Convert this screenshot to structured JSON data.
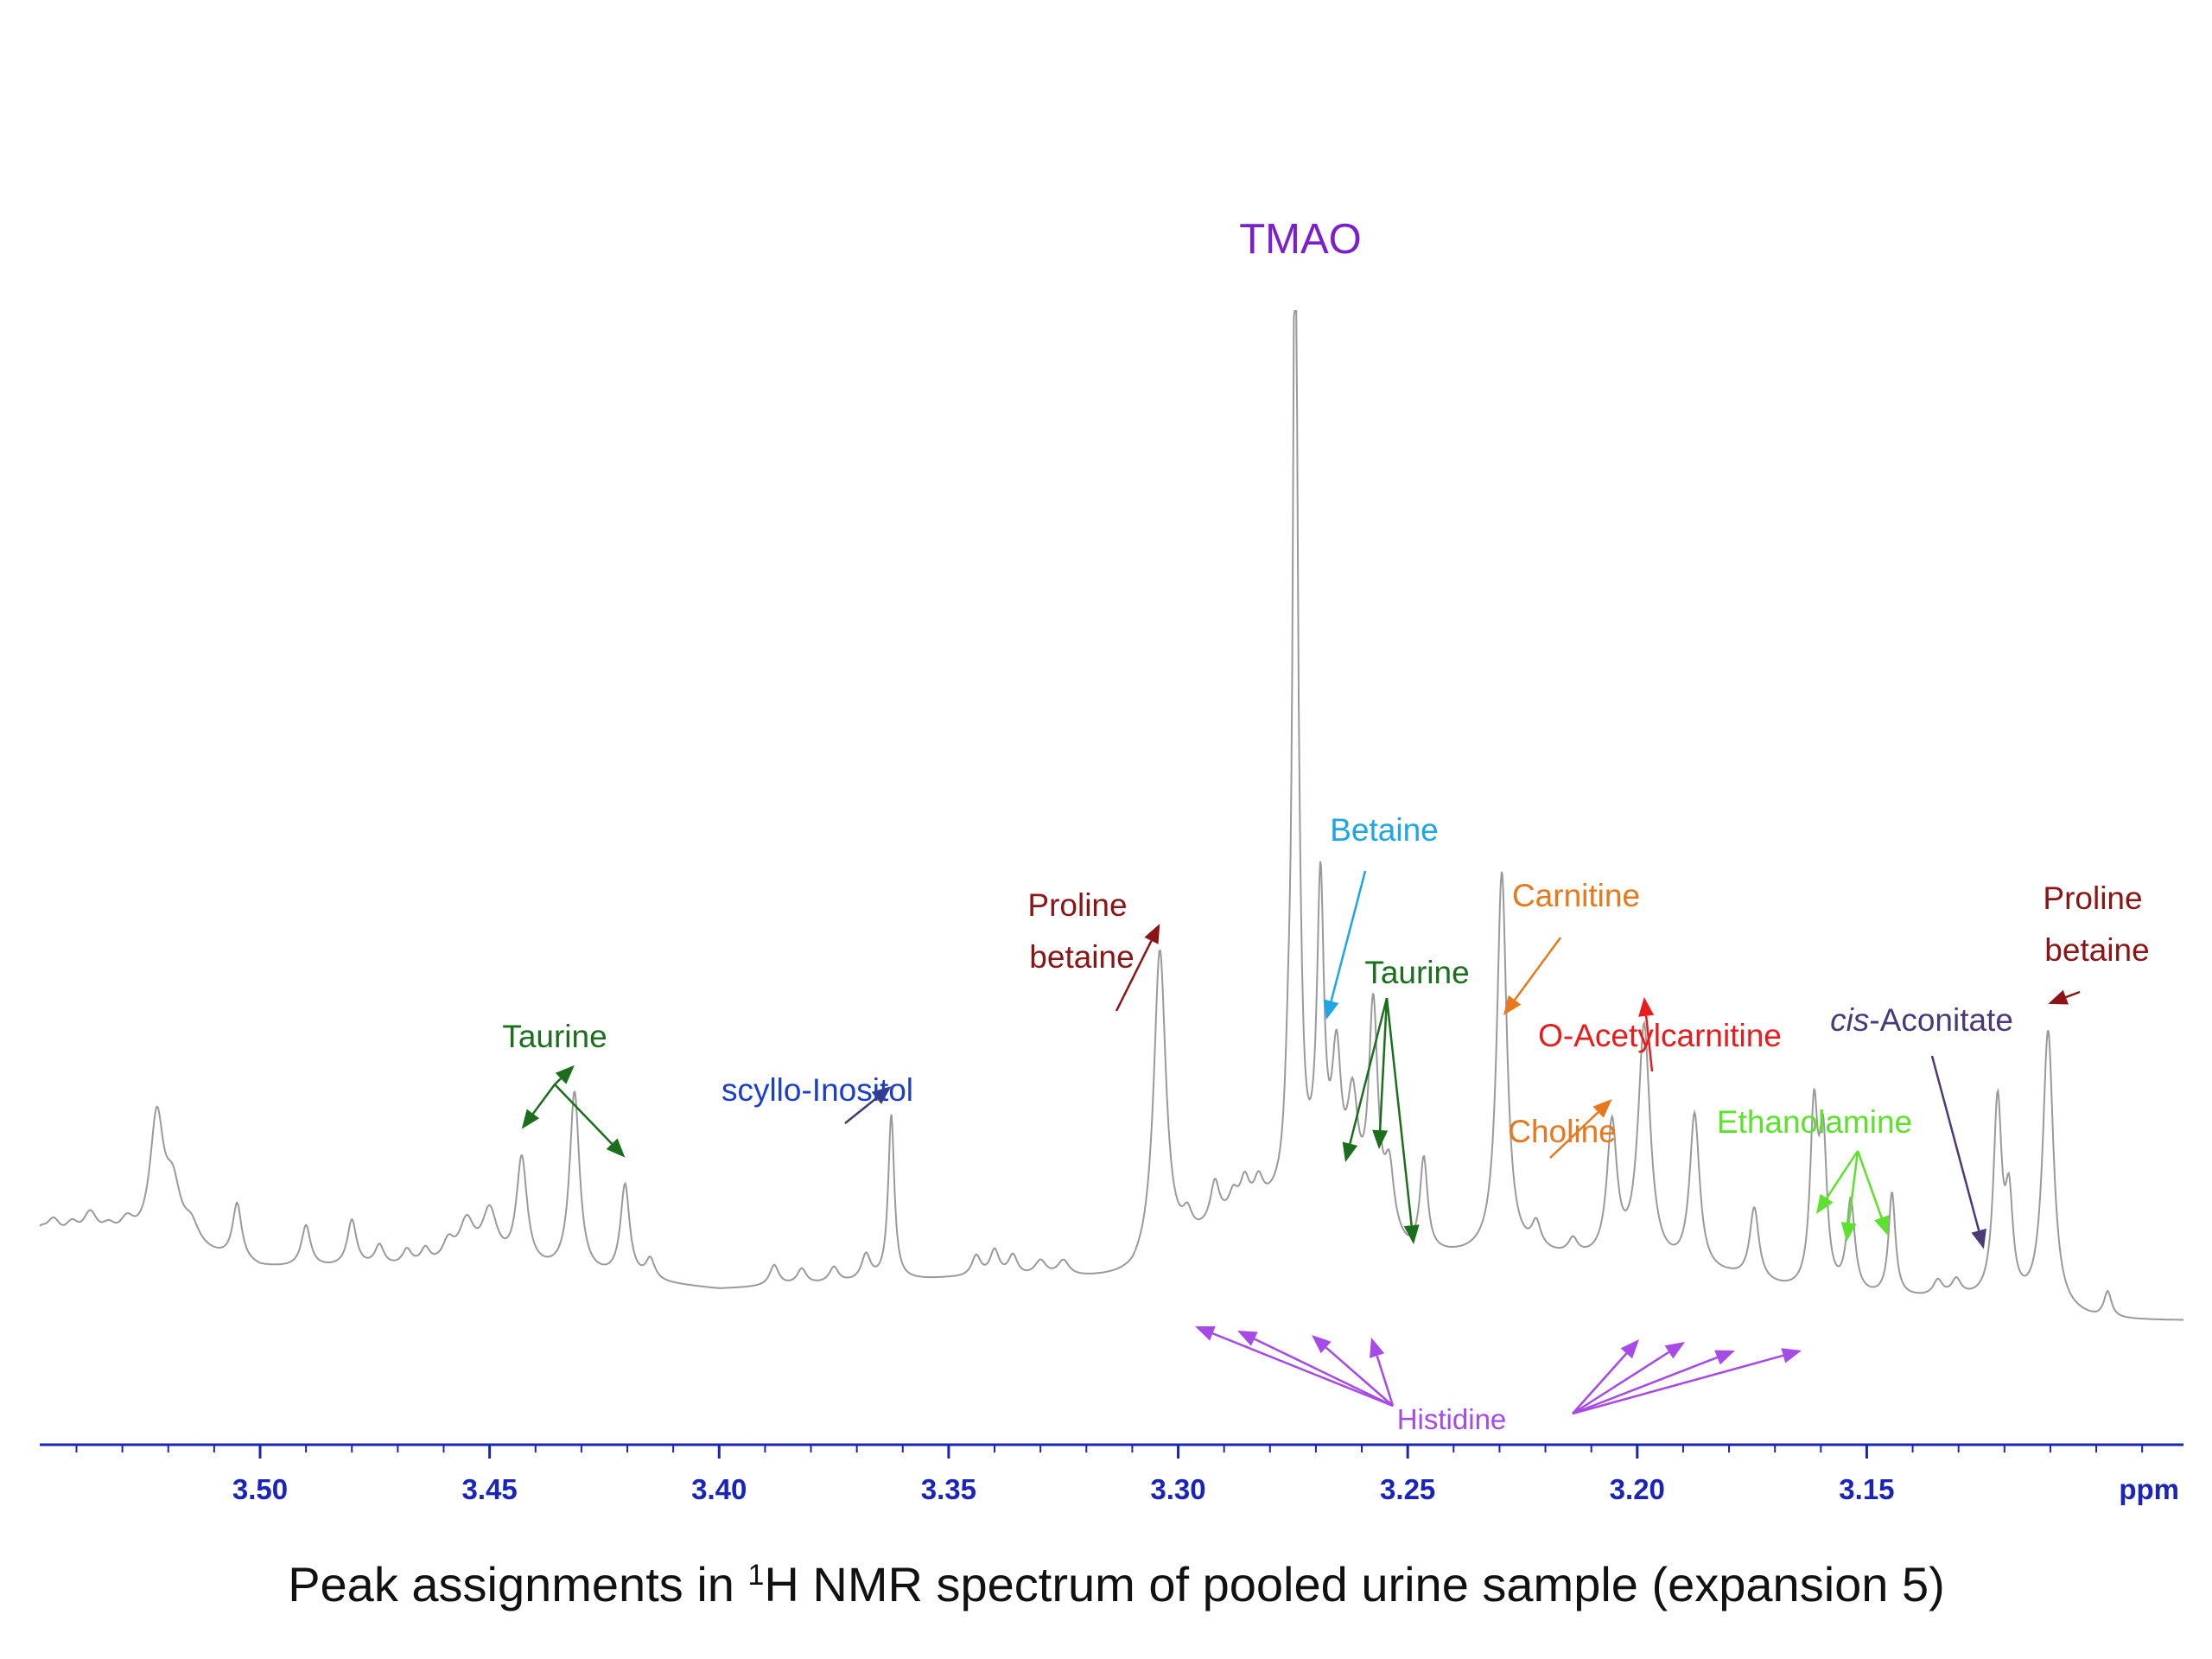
{
  "chart_data": {
    "type": "line",
    "title": "Peak assignments in ¹H NMR spectrum of pooled urine sample (expansion 5)",
    "caption_parts": {
      "before": "Peak assignments in ",
      "sup": "1",
      "after": "H NMR spectrum of pooled urine sample (expansion 5)"
    },
    "xlabel": "ppm",
    "x_reversed": true,
    "xlim": [
      3.548,
      3.081
    ],
    "grid": false,
    "x_ticks": [
      "3.50",
      "3.45",
      "3.40",
      "3.35",
      "3.30",
      "3.25",
      "3.20",
      "3.15"
    ],
    "baseline_points": [
      [
        3.548,
        0.09
      ],
      [
        3.52,
        0.1
      ],
      [
        3.5,
        0.08
      ],
      [
        3.45,
        0.08
      ],
      [
        3.4,
        0.06
      ],
      [
        3.35,
        0.07
      ],
      [
        3.31,
        0.07
      ],
      [
        3.29,
        0.12
      ],
      [
        3.27,
        0.15
      ],
      [
        3.25,
        0.09
      ],
      [
        3.22,
        0.09
      ],
      [
        3.2,
        0.08
      ],
      [
        3.18,
        0.07
      ],
      [
        3.16,
        0.05
      ],
      [
        3.13,
        0.05
      ],
      [
        3.1,
        0.03
      ],
      [
        3.081,
        0.03
      ]
    ],
    "peaks": [
      {
        "x": 3.548,
        "h": 0.02,
        "w": 0.002
      },
      {
        "x": 3.545,
        "h": 0.025,
        "w": 0.002
      },
      {
        "x": 3.541,
        "h": 0.02,
        "w": 0.002
      },
      {
        "x": 3.537,
        "h": 0.03,
        "w": 0.002
      },
      {
        "x": 3.533,
        "h": 0.015,
        "w": 0.002
      },
      {
        "x": 3.529,
        "h": 0.02,
        "w": 0.002
      },
      {
        "x": 3.5225,
        "h": 0.12,
        "w": 0.0018
      },
      {
        "x": 3.519,
        "h": 0.05,
        "w": 0.002
      },
      {
        "x": 3.515,
        "h": 0.02,
        "w": 0.002
      },
      {
        "x": 3.505,
        "h": 0.055,
        "w": 0.0012
      },
      {
        "x": 3.49,
        "h": 0.04,
        "w": 0.0012
      },
      {
        "x": 3.48,
        "h": 0.045,
        "w": 0.0012
      },
      {
        "x": 3.474,
        "h": 0.02,
        "w": 0.0012
      },
      {
        "x": 3.468,
        "h": 0.015,
        "w": 0.0012
      },
      {
        "x": 3.464,
        "h": 0.015,
        "w": 0.0012
      },
      {
        "x": 3.459,
        "h": 0.02,
        "w": 0.0015
      },
      {
        "x": 3.455,
        "h": 0.04,
        "w": 0.002
      },
      {
        "x": 3.45,
        "h": 0.05,
        "w": 0.002
      },
      {
        "x": 3.443,
        "h": 0.105,
        "w": 0.0014
      },
      {
        "x": 3.4315,
        "h": 0.175,
        "w": 0.0013
      },
      {
        "x": 3.4205,
        "h": 0.09,
        "w": 0.0012
      },
      {
        "x": 3.415,
        "h": 0.02,
        "w": 0.0012
      },
      {
        "x": 3.388,
        "h": 0.02,
        "w": 0.0012
      },
      {
        "x": 3.382,
        "h": 0.015,
        "w": 0.0012
      },
      {
        "x": 3.375,
        "h": 0.015,
        "w": 0.0012
      },
      {
        "x": 3.368,
        "h": 0.025,
        "w": 0.0012
      },
      {
        "x": 3.3625,
        "h": 0.16,
        "w": 0.0008
      },
      {
        "x": 3.344,
        "h": 0.02,
        "w": 0.0012
      },
      {
        "x": 3.34,
        "h": 0.025,
        "w": 0.0012
      },
      {
        "x": 3.336,
        "h": 0.02,
        "w": 0.0012
      },
      {
        "x": 3.33,
        "h": 0.015,
        "w": 0.0015
      },
      {
        "x": 3.325,
        "h": 0.015,
        "w": 0.0015
      },
      {
        "x": 3.304,
        "h": 0.3,
        "w": 0.0016
      },
      {
        "x": 3.298,
        "h": 0.02,
        "w": 0.0012
      },
      {
        "x": 3.292,
        "h": 0.04,
        "w": 0.0012
      },
      {
        "x": 3.288,
        "h": 0.02,
        "w": 0.0012
      },
      {
        "x": 3.2855,
        "h": 0.03,
        "w": 0.0012
      },
      {
        "x": 3.2825,
        "h": 0.025,
        "w": 0.0012
      },
      {
        "x": 3.2745,
        "h": 1.0,
        "w": 0.0006
      },
      {
        "x": 3.276,
        "h": 0.08,
        "w": 0.0008
      },
      {
        "x": 3.2735,
        "h": 0.08,
        "w": 0.0008
      },
      {
        "x": 3.269,
        "h": 0.29,
        "w": 0.0009
      },
      {
        "x": 3.2655,
        "h": 0.13,
        "w": 0.0012
      },
      {
        "x": 3.262,
        "h": 0.1,
        "w": 0.0014
      },
      {
        "x": 3.2575,
        "h": 0.21,
        "w": 0.0012
      },
      {
        "x": 3.254,
        "h": 0.06,
        "w": 0.0012
      },
      {
        "x": 3.2465,
        "h": 0.09,
        "w": 0.001
      },
      {
        "x": 3.2295,
        "h": 0.37,
        "w": 0.0013
      },
      {
        "x": 3.222,
        "h": 0.025,
        "w": 0.0012
      },
      {
        "x": 3.214,
        "h": 0.015,
        "w": 0.0012
      },
      {
        "x": 3.2055,
        "h": 0.13,
        "w": 0.0013
      },
      {
        "x": 3.1985,
        "h": 0.23,
        "w": 0.0016
      },
      {
        "x": 3.1875,
        "h": 0.15,
        "w": 0.0013
      },
      {
        "x": 3.1745,
        "h": 0.07,
        "w": 0.0012
      },
      {
        "x": 3.1615,
        "h": 0.17,
        "w": 0.001
      },
      {
        "x": 3.1595,
        "h": 0.14,
        "w": 0.001
      },
      {
        "x": 3.1535,
        "h": 0.09,
        "w": 0.0011
      },
      {
        "x": 3.1445,
        "h": 0.1,
        "w": 0.0009
      },
      {
        "x": 3.1345,
        "h": 0.015,
        "w": 0.0012
      },
      {
        "x": 3.1305,
        "h": 0.015,
        "w": 0.0012
      },
      {
        "x": 3.1215,
        "h": 0.19,
        "w": 0.0011
      },
      {
        "x": 3.119,
        "h": 0.09,
        "w": 0.001
      },
      {
        "x": 3.1105,
        "h": 0.27,
        "w": 0.0014
      },
      {
        "x": 3.0975,
        "h": 0.025,
        "w": 0.001
      }
    ],
    "y_scale": {
      "bottom": 0.0,
      "top": 1.0
    },
    "annotations": [
      {
        "id": "tmao",
        "text": "TMAO",
        "color": "#7a1ed0",
        "arrows": []
      },
      {
        "id": "taurine-left",
        "text": "Taurine",
        "color": "#1b6e1b",
        "arrows": [
          3.443,
          3.4315,
          3.4205
        ]
      },
      {
        "id": "scyllo",
        "text": "scyllo-Inositol",
        "color": "#1c3fc9",
        "arrow_color": "#3d3d73",
        "arrows": [
          3.3625
        ]
      },
      {
        "id": "proline-left",
        "text_lines": [
          "Proline",
          "betaine"
        ],
        "color": "#8b1414",
        "arrows": [
          3.304
        ]
      },
      {
        "id": "betaine",
        "text": "Betaine",
        "color": "#1ea5e4",
        "arrows": [
          3.2665
        ]
      },
      {
        "id": "taurine-right",
        "text": "Taurine",
        "color": "#1b6e1b",
        "arrows": [
          3.2605,
          3.2545,
          3.2465
        ]
      },
      {
        "id": "carnitine",
        "text": "Carnitine",
        "color": "#e8781c",
        "arrows": [
          3.2295
        ]
      },
      {
        "id": "o-acetylcarnitine",
        "text": "O-Acetylcarnitine",
        "color": "#e81c1c",
        "arrows": [
          3.1985
        ]
      },
      {
        "id": "choline",
        "text": "Choline",
        "color": "#e8781c",
        "arrows": [
          3.2055
        ]
      },
      {
        "id": "cis-aconitate",
        "text_italic": "cis",
        "text": "-Aconitate",
        "color": "#4a3a78",
        "arrows": [
          3.1245
        ]
      },
      {
        "id": "ethanolamine",
        "text": "Ethanolamine",
        "color": "#5ee12e",
        "arrows": [
          3.1605,
          3.1535,
          3.1445
        ]
      },
      {
        "id": "proline-right",
        "text_lines": [
          "Proline",
          "betaine"
        ],
        "color": "#8b1414",
        "arrows": [
          3.1105
        ]
      },
      {
        "id": "histidine",
        "text": "Histidine",
        "color": "#a64ae8",
        "arrows": [
          3.2945,
          3.2845,
          3.2655,
          3.2565,
          3.1985,
          3.1875,
          3.1745,
          3.1625
        ]
      }
    ]
  }
}
